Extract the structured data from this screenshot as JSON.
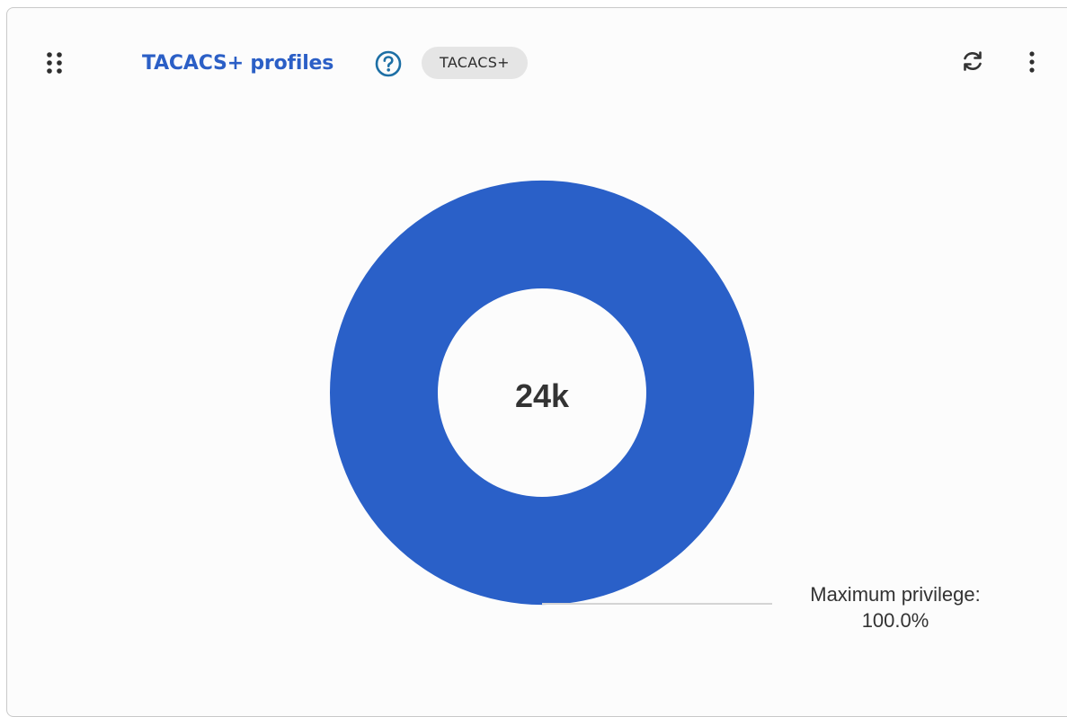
{
  "widget": {
    "title": "TACACS+ profiles",
    "badge": "TACACS+",
    "icons": {
      "drag": "drag-handle-icon",
      "help": "help-icon",
      "refresh": "refresh-icon",
      "more": "more-vert-icon"
    },
    "colors": {
      "title": "#2b5fc6",
      "donut": "#2a60c8",
      "badge_bg": "#e5e5e5"
    }
  },
  "chart_data": {
    "type": "pie",
    "center_label": "24k",
    "slices": [
      {
        "name": "Maximum privilege",
        "percent": 100.0,
        "label": "Maximum privilege:",
        "value_label": "100.0%",
        "color": "#2a60c8"
      }
    ]
  }
}
